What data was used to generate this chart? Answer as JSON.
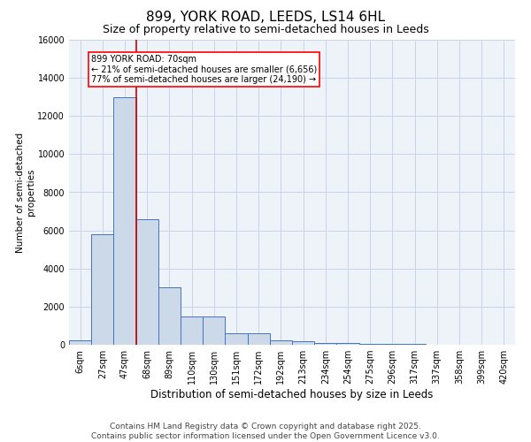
{
  "title": "899, YORK ROAD, LEEDS, LS14 6HL",
  "subtitle": "Size of property relative to semi-detached houses in Leeds",
  "xlabel": "Distribution of semi-detached houses by size in Leeds",
  "ylabel": "Number of semi-detached\nproperties",
  "footer1": "Contains HM Land Registry data © Crown copyright and database right 2025.",
  "footer2": "Contains public sector information licensed under the Open Government Licence v3.0.",
  "bin_labels": [
    "6sqm",
    "27sqm",
    "47sqm",
    "68sqm",
    "89sqm",
    "110sqm",
    "130sqm",
    "151sqm",
    "172sqm",
    "192sqm",
    "213sqm",
    "234sqm",
    "254sqm",
    "275sqm",
    "296sqm",
    "317sqm",
    "337sqm",
    "358sqm",
    "399sqm",
    "420sqm"
  ],
  "bar_heights": [
    250,
    5800,
    13000,
    6600,
    3000,
    1500,
    1500,
    620,
    620,
    250,
    200,
    100,
    100,
    55,
    55,
    30,
    20,
    10,
    10,
    5
  ],
  "bar_color": "#ccd9e8",
  "bar_edge_color": "#4472c4",
  "red_line_bin": 2.5,
  "red_line_color": "#cc0000",
  "annotation_text": "899 YORK ROAD: 70sqm\n← 21% of semi-detached houses are smaller (6,656)\n77% of semi-detached houses are larger (24,190) →",
  "ylim": [
    0,
    16000
  ],
  "title_fontsize": 11,
  "subtitle_fontsize": 9,
  "footer_fontsize": 6.5,
  "xlabel_fontsize": 8.5,
  "ylabel_fontsize": 7.5,
  "tick_fontsize": 7,
  "annot_fontsize": 7,
  "background_color": "#ffffff",
  "axes_bg_color": "#eef2f9",
  "grid_color": "#c8d4e8"
}
